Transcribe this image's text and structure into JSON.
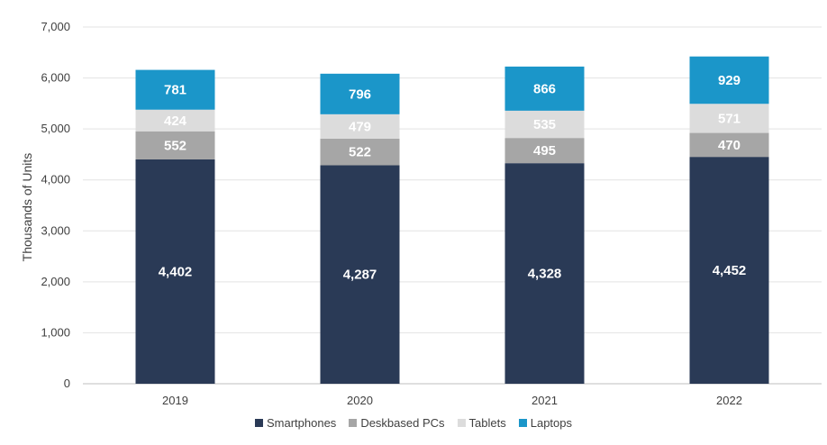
{
  "chart_data": {
    "type": "bar",
    "stacked": true,
    "categories": [
      "2019",
      "2020",
      "2021",
      "2022"
    ],
    "series": [
      {
        "name": "Smartphones",
        "color": "#2a3a56",
        "values": [
          4402,
          4287,
          4328,
          4452
        ]
      },
      {
        "name": "Deskbased PCs",
        "color": "#a6a6a6",
        "values": [
          552,
          522,
          495,
          470
        ]
      },
      {
        "name": "Tablets",
        "color": "#dcdcdc",
        "values": [
          424,
          479,
          535,
          571
        ]
      },
      {
        "name": "Laptops",
        "color": "#1b96c9",
        "values": [
          781,
          796,
          866,
          929
        ]
      }
    ],
    "data_labels": [
      [
        "4,402",
        "4,287",
        "4,328",
        "4,452"
      ],
      [
        "552",
        "522",
        "495",
        "470"
      ],
      [
        "424",
        "479",
        "535",
        "571"
      ],
      [
        "781",
        "796",
        "866",
        "929"
      ]
    ],
    "ylabel": "Thousands of Units",
    "ylim": [
      0,
      7000
    ],
    "yticks": [
      0,
      1000,
      2000,
      3000,
      4000,
      5000,
      6000,
      7000
    ],
    "ytick_labels": [
      "0",
      "1,000",
      "2,000",
      "3,000",
      "4,000",
      "5,000",
      "6,000",
      "7,000"
    ],
    "grid": true,
    "legend_position": "bottom"
  }
}
